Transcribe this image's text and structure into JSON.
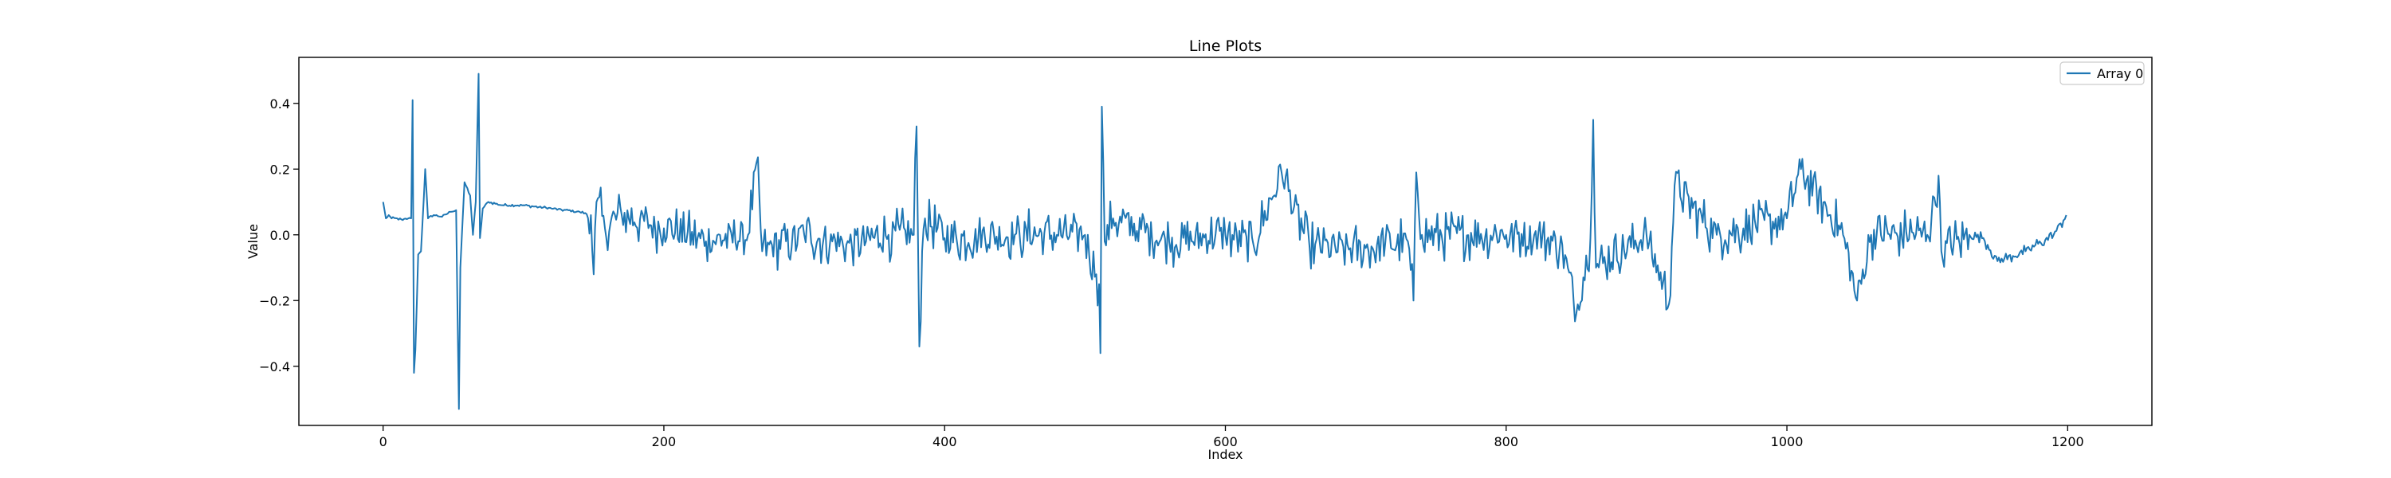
{
  "chart_data": {
    "type": "line",
    "title": "Line Plots",
    "xlabel": "Index",
    "ylabel": "Value",
    "xlim": [
      -60,
      1260
    ],
    "ylim": [
      -0.58,
      0.54
    ],
    "xticks": [
      0,
      200,
      400,
      600,
      800,
      1000,
      1200
    ],
    "yticks": [
      -0.4,
      -0.2,
      0.0,
      0.2,
      0.4
    ],
    "ytick_labels": [
      "−0.4",
      "−0.2",
      "0.0",
      "0.2",
      "0.4"
    ],
    "grid": false,
    "legend": {
      "position": "top-right",
      "entries": [
        "Array 0"
      ]
    },
    "series": [
      {
        "name": "Array 0",
        "color": "#1f77b4",
        "n_points": 1200,
        "anchors": [
          [
            0,
            0.1
          ],
          [
            2,
            0.05
          ],
          [
            4,
            0.06
          ],
          [
            6,
            0.05
          ],
          [
            10,
            0.05
          ],
          [
            14,
            0.045
          ],
          [
            18,
            0.05
          ],
          [
            20,
            0.05
          ],
          [
            21,
            0.41
          ],
          [
            22,
            -0.42
          ],
          [
            23,
            -0.35
          ],
          [
            25,
            -0.06
          ],
          [
            27,
            -0.05
          ],
          [
            30,
            0.2
          ],
          [
            32,
            0.05
          ],
          [
            36,
            0.06
          ],
          [
            42,
            0.055
          ],
          [
            48,
            0.07
          ],
          [
            52,
            0.075
          ],
          [
            54,
            -0.53
          ],
          [
            55,
            -0.1
          ],
          [
            58,
            0.16
          ],
          [
            62,
            0.12
          ],
          [
            64,
            0.0
          ],
          [
            66,
            0.1
          ],
          [
            68,
            0.49
          ],
          [
            69,
            -0.01
          ],
          [
            71,
            0.08
          ],
          [
            75,
            0.1
          ],
          [
            85,
            0.09
          ],
          [
            100,
            0.09
          ],
          [
            120,
            0.08
          ],
          [
            140,
            0.07
          ],
          [
            148,
            0.06
          ],
          [
            150,
            -0.12
          ],
          [
            152,
            0.1
          ],
          [
            158,
            0.02
          ],
          [
            170,
            0.06
          ],
          [
            200,
            0.02
          ],
          [
            230,
            -0.02
          ],
          [
            260,
            0.0
          ],
          [
            266,
            0.22
          ],
          [
            270,
            -0.05
          ],
          [
            300,
            0.0
          ],
          [
            330,
            -0.03
          ],
          [
            360,
            0.0
          ],
          [
            378,
            0.0
          ],
          [
            380,
            0.33
          ],
          [
            382,
            -0.34
          ],
          [
            384,
            -0.05
          ],
          [
            386,
            0.05
          ],
          [
            400,
            -0.01
          ],
          [
            450,
            0.0
          ],
          [
            480,
            0.0
          ],
          [
            500,
            0.0
          ],
          [
            508,
            -0.12
          ],
          [
            510,
            -0.15
          ],
          [
            511,
            -0.36
          ],
          [
            512,
            0.39
          ],
          [
            514,
            -0.02
          ],
          [
            520,
            0.05
          ],
          [
            560,
            -0.02
          ],
          [
            600,
            0.0
          ],
          [
            620,
            -0.03
          ],
          [
            640,
            0.19
          ],
          [
            660,
            -0.04
          ],
          [
            700,
            -0.04
          ],
          [
            730,
            -0.02
          ],
          [
            734,
            -0.2
          ],
          [
            736,
            0.19
          ],
          [
            740,
            0.0
          ],
          [
            800,
            0.0
          ],
          [
            820,
            0.0
          ],
          [
            840,
            -0.03
          ],
          [
            850,
            -0.24
          ],
          [
            860,
            -0.01
          ],
          [
            862,
            0.35
          ],
          [
            864,
            -0.1
          ],
          [
            900,
            0.0
          ],
          [
            916,
            -0.21
          ],
          [
            920,
            0.15
          ],
          [
            950,
            0.0
          ],
          [
            1000,
            0.05
          ],
          [
            1010,
            0.2
          ],
          [
            1040,
            0.0
          ],
          [
            1050,
            -0.2
          ],
          [
            1060,
            0.0
          ],
          [
            1100,
            0.0
          ],
          [
            1108,
            0.18
          ],
          [
            1110,
            -0.05
          ],
          [
            1130,
            0.0
          ],
          [
            1140,
            -0.01
          ],
          [
            1150,
            -0.08
          ],
          [
            1170,
            -0.05
          ],
          [
            1190,
            0.0
          ],
          [
            1199,
            0.06
          ]
        ]
      }
    ]
  }
}
